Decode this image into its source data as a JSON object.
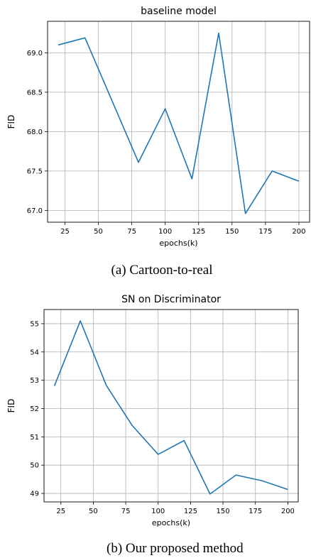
{
  "chart_data": [
    {
      "type": "line",
      "title": "baseline model",
      "xlabel": "epochs(k)",
      "ylabel": "FID",
      "x": [
        20,
        40,
        60,
        80,
        100,
        120,
        140,
        160,
        180,
        200
      ],
      "series": [
        {
          "values": [
            69.1,
            69.19,
            68.4,
            67.61,
            68.29,
            67.4,
            69.25,
            66.96,
            67.5,
            67.37
          ],
          "color": "#1f77b4"
        }
      ],
      "xlim": [
        12,
        208
      ],
      "ylim": [
        66.85,
        69.4
      ],
      "xticks": [
        "25",
        "50",
        "75",
        "100",
        "125",
        "150",
        "175",
        "200"
      ],
      "yticks": [
        "67.0",
        "67.5",
        "68.0",
        "68.5",
        "69.0"
      ],
      "grid": true,
      "caption": "(a) Cartoon-to-real"
    },
    {
      "type": "line",
      "title": "SN on Discriminator",
      "xlabel": "epochs(k)",
      "ylabel": "FID",
      "x": [
        20,
        40,
        60,
        80,
        100,
        120,
        140,
        160,
        180,
        200
      ],
      "series": [
        {
          "values": [
            52.8,
            55.1,
            52.82,
            51.4,
            50.38,
            50.87,
            48.98,
            49.65,
            49.45,
            49.14
          ],
          "color": "#1f77b4"
        }
      ],
      "xlim": [
        12,
        208
      ],
      "ylim": [
        48.7,
        55.5
      ],
      "xticks": [
        "25",
        "50",
        "75",
        "100",
        "125",
        "150",
        "175",
        "200"
      ],
      "yticks": [
        "49",
        "50",
        "51",
        "52",
        "53",
        "54",
        "55"
      ],
      "grid": true,
      "caption": "(b) Our proposed method"
    }
  ]
}
